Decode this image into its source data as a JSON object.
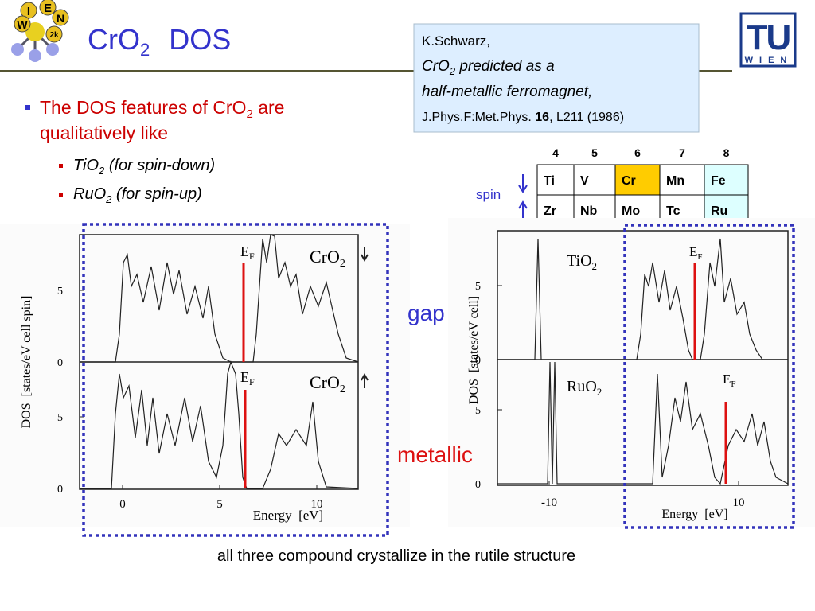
{
  "logo": {
    "letters": [
      "I",
      "E",
      "N",
      "W",
      "2k"
    ]
  },
  "header": {
    "title": {
      "base": "CrO",
      "sub": "2",
      "rest": "DOS"
    }
  },
  "reference": {
    "author": "K.Schwarz,",
    "line2": {
      "base": "CrO",
      "sub": "2",
      "rest": " predicted as a"
    },
    "line3": "half-metallic ferromagnet,",
    "journal": "J.Phys.F:Met.Phys. ",
    "volume": "16",
    "pages": ", L211 (1986)"
  },
  "tu_logo": {
    "top": "TU",
    "bottom": "WIEN"
  },
  "bullets": {
    "main": {
      "pre": "The DOS features of CrO",
      "sub": "2",
      "post": " are",
      "line2": "qualitatively like"
    },
    "items": [
      {
        "base": "TiO",
        "sub": "2",
        "note": " (for spin-down)"
      },
      {
        "base": "RuO",
        "sub": "2",
        "note": " (for spin-up)"
      }
    ]
  },
  "periodic_table": {
    "groups": [
      4,
      5,
      6,
      7,
      8
    ],
    "rows": [
      [
        "Ti",
        "V",
        "Cr",
        "Mn",
        "Fe"
      ],
      [
        "Zr",
        "Nb",
        "Mo",
        "Tc",
        "Ru"
      ]
    ],
    "spin_label": "spin"
  },
  "left_plot": {
    "y_label": "DOS  [states/eV cell spin]",
    "x_label": "Energy  [eV]",
    "x_ticks": [
      0,
      5,
      10
    ],
    "fermi": {
      "base": "E",
      "sub": "F"
    },
    "panels": [
      {
        "label": {
          "base": "CrO",
          "sub": "2"
        },
        "y_ticks": [
          0,
          5
        ]
      },
      {
        "label": {
          "base": "CrO",
          "sub": "2"
        },
        "y_ticks": [
          0,
          5
        ]
      }
    ]
  },
  "right_plot": {
    "y_label": "DOS  [states/eV cell]",
    "x_label": "Energy  [eV]",
    "x_ticks": [
      -10,
      10
    ],
    "fermi": {
      "base": "E",
      "sub": "F"
    },
    "panels": [
      {
        "label": {
          "base": "TiO",
          "sub": "2"
        },
        "y_ticks": [
          0,
          5
        ]
      },
      {
        "label": {
          "base": "RuO",
          "sub": "2"
        },
        "y_ticks": [
          0,
          5
        ]
      }
    ]
  },
  "annotations": {
    "gap": "gap",
    "metallic": "metallic"
  },
  "caption": "all three compound crystallize in the rutile structure"
}
